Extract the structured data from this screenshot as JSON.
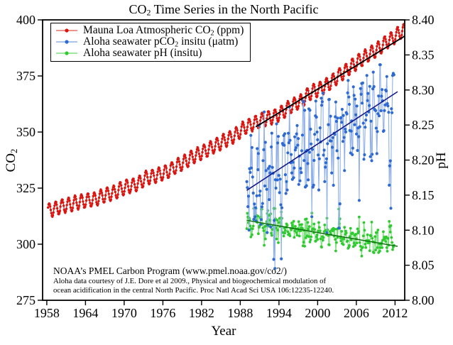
{
  "title": {
    "pre": "CO",
    "sub": "2",
    "post": " Time Series in the North Pacific"
  },
  "axes": {
    "x_label": "Year",
    "left_label_pre": "CO",
    "left_label_sub": "2",
    "right_label": "pH"
  },
  "annotation": {
    "lines": [
      "NOAA’s PMEL Carbon Program (www.pmel.noaa.gov/co2/)",
      "Aloha data courtesy of J.E. Dore et al 2009., Physical and biogeochemical modulation of",
      "ocean acidification in the central North Pacific. Proc Natl Acad Sci USA 106:12235-12240."
    ]
  },
  "chart_data": {
    "type": "line",
    "title": "CO₂ Time Series in the North Pacific",
    "xlabel": "Year",
    "ylabel_left": "CO₂",
    "ylabel_right": "pH",
    "grid": false,
    "legend_position": "top-left",
    "x_range": [
      1957.35,
      2013.5
    ],
    "x_ticks": [
      1958,
      1964,
      1970,
      1976,
      1982,
      1988,
      1994,
      2000,
      2006,
      2012
    ],
    "y_left_range": [
      275,
      400
    ],
    "y_left_ticks": [
      275,
      300,
      325,
      350,
      375,
      400
    ],
    "y_right_range": [
      8.0,
      8.4
    ],
    "y_right_ticks": [
      "8.00",
      "8.05",
      "8.10",
      "8.15",
      "8.20",
      "8.25",
      "8.30",
      "8.35",
      "8.40"
    ],
    "seed": 7,
    "legend": {
      "entries": [
        {
          "label": "Mauna Loa Atmospheric CO₂ (ppm)",
          "pre": "Mauna Loa Atmospheric CO",
          "sub": "2",
          "post": " (ppm)",
          "marker_color": "#da1510",
          "line_color": "#e8706a"
        },
        {
          "label": "Aloha seawater pCO₂ insitu (μatm)",
          "pre": "Aloha seawater pCO",
          "sub": "2",
          "post": " insitu (μatm)",
          "marker_color": "#2e6ad1",
          "line_color": "#8fb0e8"
        },
        {
          "label": "Aloha seawater pH (insitu)",
          "pre": "Aloha seawater pH (insitu)",
          "sub": "",
          "post": "",
          "marker_color": "#2fca2f",
          "line_color": "#7ce07c"
        }
      ]
    },
    "series": [
      {
        "id": "mauna_loa",
        "name": "Mauna Loa Atmospheric CO₂ (ppm)",
        "axis": "left",
        "kind": "monthly_from_annual_means",
        "marker_color": "#da1510",
        "line_color": "#da1510",
        "marker_radius": 1.7,
        "line_width": 1.2,
        "start": 1958.2,
        "end": 2013.4,
        "annual_years_start": 1958,
        "annual_means": [
          315.2,
          316.0,
          316.9,
          317.6,
          318.5,
          319.0,
          319.6,
          320.0,
          321.4,
          322.2,
          323.0,
          324.6,
          325.7,
          326.3,
          327.5,
          329.7,
          330.2,
          331.1,
          332.0,
          333.8,
          335.4,
          336.8,
          338.8,
          340.1,
          341.4,
          343.0,
          344.4,
          346.1,
          347.4,
          349.2,
          351.6,
          353.1,
          354.4,
          355.6,
          356.4,
          357.1,
          358.8,
          360.8,
          362.6,
          363.7,
          366.7,
          368.4,
          369.5,
          371.1,
          373.2,
          375.8,
          377.5,
          379.8,
          381.9,
          383.8,
          385.6,
          387.4,
          389.9,
          391.6,
          393.8
        ],
        "seasonal_amplitude": 3.1,
        "seasonal_peak_frac": 0.37,
        "noise_sd": 0.25
      },
      {
        "id": "pco2",
        "name": "Aloha seawater pCO₂ insitu (μatm)",
        "axis": "left",
        "kind": "noisy_trend",
        "marker_color": "#2e6ad1",
        "line_color": "#8fb0e8",
        "marker_radius": 2.1,
        "line_width": 1.1,
        "start": 1989.0,
        "end": 2011.8,
        "samples_per_year": 11,
        "trend_start_value": 324.5,
        "trend_end_value": 366.5,
        "seasonal_amplitude": 14,
        "seasonal_peak_frac": 0.75,
        "noise_sd": 8,
        "dip_probability": 0.055,
        "dip_range": [
          15,
          42
        ],
        "min": 284,
        "max": 380
      },
      {
        "id": "ph",
        "name": "Aloha seawater pH (insitu)",
        "axis": "right",
        "kind": "anticorrelated_with_pco2",
        "marker_color": "#2fca2f",
        "line_color": "#7ce07c",
        "marker_radius": 1.9,
        "line_width": 1.1,
        "start": 1989.0,
        "end": 2011.8,
        "trend_start_value": 8.114,
        "trend_end_value": 8.078,
        "anticorrelation_coef": -0.00072,
        "noise_sd": 0.006,
        "min": 8.049,
        "max": 8.131
      }
    ],
    "trend_lines": [
      {
        "id": "mauna_loa_trend",
        "axis": "left",
        "color": "#000000",
        "width": 1.9,
        "x": [
          1990.4,
          2013.5
        ],
        "y": [
          352.3,
          392.8
        ]
      },
      {
        "id": "pco2_trend",
        "axis": "left",
        "color": "#14198c",
        "width": 1.6,
        "x": [
          1989.0,
          2012.4
        ],
        "y": [
          324.0,
          368.0
        ]
      },
      {
        "id": "ph_trend",
        "axis": "right",
        "color": "#117311",
        "width": 1.5,
        "x": [
          1989.0,
          2012.4
        ],
        "y": [
          8.114,
          8.077
        ]
      }
    ],
    "frame_color": "#000000"
  }
}
